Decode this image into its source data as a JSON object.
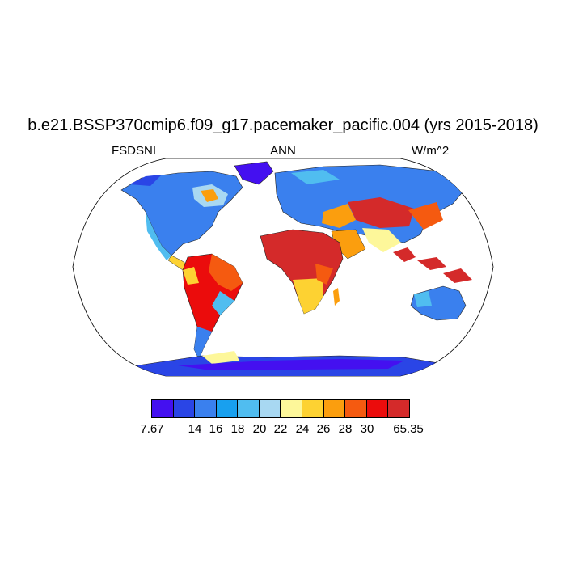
{
  "figure": {
    "title": "b.e21.BSSP370cmip6.f09_g17.pacemaker_pacific.004 (yrs 2015-2018)",
    "left_label": "FSDSNI",
    "center_label": "ANN",
    "right_label": "W/m^2"
  },
  "colorbar": {
    "colors": [
      "#4410f0",
      "#2a45e6",
      "#3a80ee",
      "#18a0ef",
      "#50bdf0",
      "#a8d8f2",
      "#fdf79a",
      "#fdd232",
      "#fb9e0e",
      "#f55a10",
      "#eb0c0c",
      "#d42a2a"
    ],
    "labels": [
      "7.67",
      "14",
      "16",
      "18",
      "20",
      "22",
      "24",
      "26",
      "28",
      "30",
      "65.35"
    ]
  },
  "map": {
    "projection": "Robinson",
    "continents": [
      "North America",
      "South America",
      "Greenland",
      "Africa",
      "Europe",
      "Asia",
      "Australia",
      "Antarctica"
    ]
  }
}
